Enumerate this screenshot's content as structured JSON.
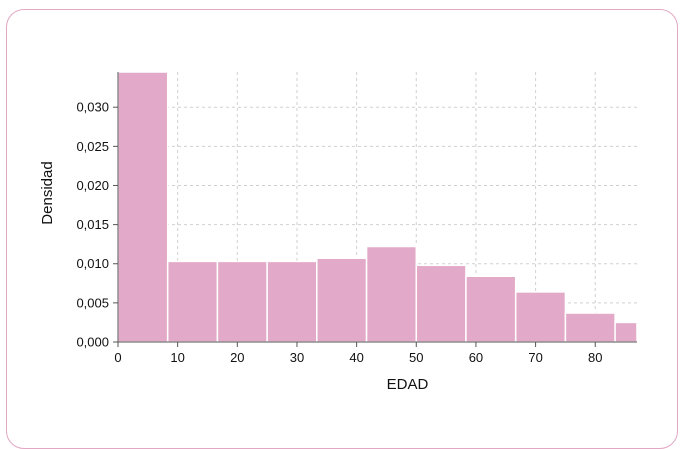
{
  "chart_data": {
    "type": "bar",
    "title": "",
    "xlabel": "EDAD",
    "ylabel": "Densidad",
    "xlim": [
      0,
      87
    ],
    "ylim": [
      0,
      0.0345
    ],
    "x_ticks": [
      0,
      10,
      20,
      30,
      40,
      50,
      60,
      70,
      80
    ],
    "y_ticks": [
      0.0,
      0.005,
      0.01,
      0.015,
      0.02,
      0.025,
      0.03
    ],
    "y_tick_labels": [
      "0,000",
      "0,005",
      "0,010",
      "0,015",
      "0,020",
      "0,025",
      "0,030"
    ],
    "bin_width": 8.33,
    "bins": [
      {
        "start": 0.0,
        "value": 0.0345
      },
      {
        "start": 8.33,
        "value": 0.0103
      },
      {
        "start": 16.67,
        "value": 0.0103
      },
      {
        "start": 25.0,
        "value": 0.0103
      },
      {
        "start": 33.33,
        "value": 0.0107
      },
      {
        "start": 41.67,
        "value": 0.0122
      },
      {
        "start": 50.0,
        "value": 0.0098
      },
      {
        "start": 58.33,
        "value": 0.0084
      },
      {
        "start": 66.67,
        "value": 0.0064
      },
      {
        "start": 75.0,
        "value": 0.0037
      },
      {
        "start": 83.33,
        "value": 0.0025
      }
    ],
    "grid": true,
    "bar_color": "#e3a9c8",
    "bar_edge_color": "#ffffff",
    "grid_color": "#d0d0d0",
    "frame_color": "#e2a7c3"
  }
}
